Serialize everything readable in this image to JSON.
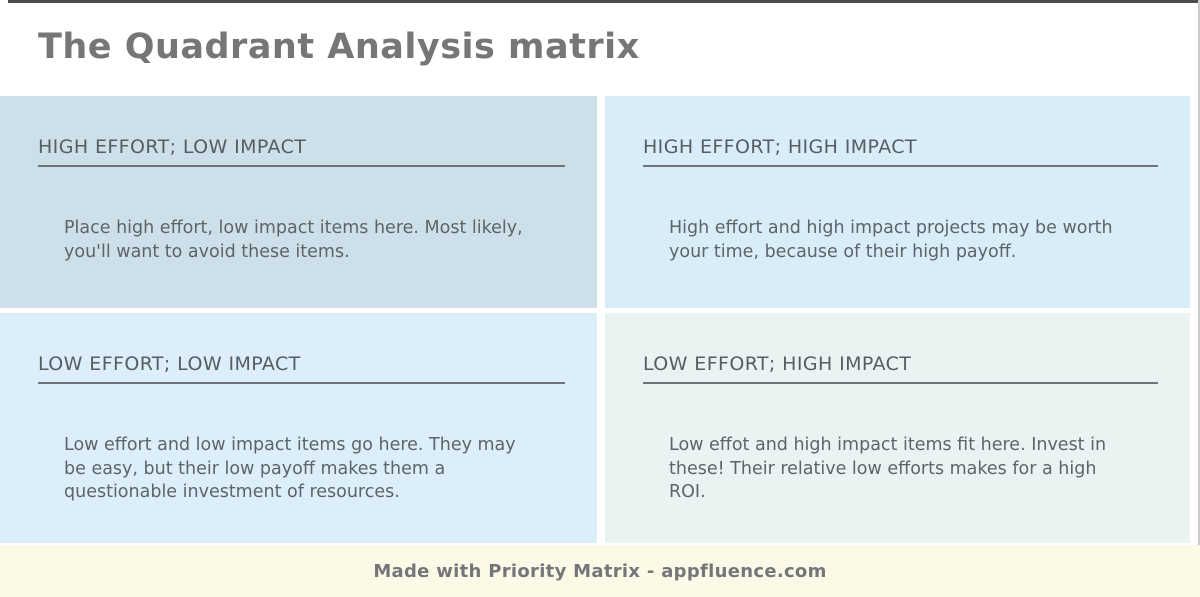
{
  "header": {
    "title": "The Quadrant Analysis matrix"
  },
  "quadrants": {
    "top_left": {
      "heading": "HIGH EFFORT; LOW IMPACT",
      "body": "Place high effort, low impact items here. Most likely, you'll want to avoid these items.",
      "bg": "#cddfe8"
    },
    "top_right": {
      "heading": "HIGH EFFORT; HIGH IMPACT",
      "body": "High effort and high impact projects may be worth your time, because of their high payoff.",
      "bg": "#d9edf9"
    },
    "bottom_left": {
      "heading": "LOW EFFORT; LOW IMPACT",
      "body": "Low effort and low impact items go here. They may be easy, but their low payoff makes them a questionable investment of resources.",
      "bg": "#dbeef9"
    },
    "bottom_right": {
      "heading": "LOW EFFORT; HIGH IMPACT",
      "body": "Low effot and high impact items fit here. Invest in these! Their relative low efforts makes for a high ROI.",
      "bg": "#eaf3f1"
    }
  },
  "footer": {
    "credit": "Made with Priority Matrix - appfluence.com",
    "bg": "#fbfae7"
  },
  "colors": {
    "title_text": "#767678",
    "heading_text": "#575d62",
    "body_text": "#5e6468",
    "underline": "#6d7378",
    "footer_text": "#75767a",
    "top_border": "#4c4c4c"
  }
}
